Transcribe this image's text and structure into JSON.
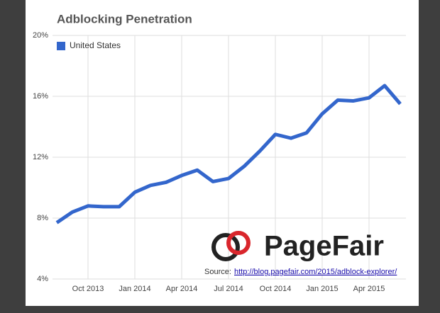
{
  "chart_data": {
    "type": "line",
    "title": "Adblocking Penetration",
    "categories": [
      null,
      null,
      "Oct 2013",
      null,
      null,
      "Jan 2014",
      null,
      null,
      "Apr 2014",
      null,
      null,
      "Jul 2014",
      null,
      null,
      "Oct 2014",
      null,
      null,
      "Jan 2015",
      null,
      null,
      "Apr 2015",
      null,
      null
    ],
    "series": [
      {
        "name": "United States",
        "color": "#3366cc",
        "values": [
          7.7,
          8.4,
          8.8,
          8.75,
          8.75,
          9.7,
          10.15,
          10.35,
          10.8,
          11.15,
          10.4,
          10.6,
          11.4,
          12.4,
          13.5,
          13.25,
          13.6,
          14.85,
          15.75,
          15.7,
          15.9,
          16.7,
          15.5
        ]
      }
    ],
    "ylim": [
      4,
      20
    ],
    "yticks": [
      {
        "value": 4,
        "label": "4%"
      },
      {
        "value": 8,
        "label": "8%"
      },
      {
        "value": 12,
        "label": "12%"
      },
      {
        "value": 16,
        "label": "16%"
      },
      {
        "value": 20,
        "label": "20%"
      }
    ],
    "grid": true,
    "legend": "top-left",
    "annotations": [
      "PageFair",
      "Source:",
      "http://blog.pagefair.com/2015/adblock-explorer/"
    ]
  }
}
